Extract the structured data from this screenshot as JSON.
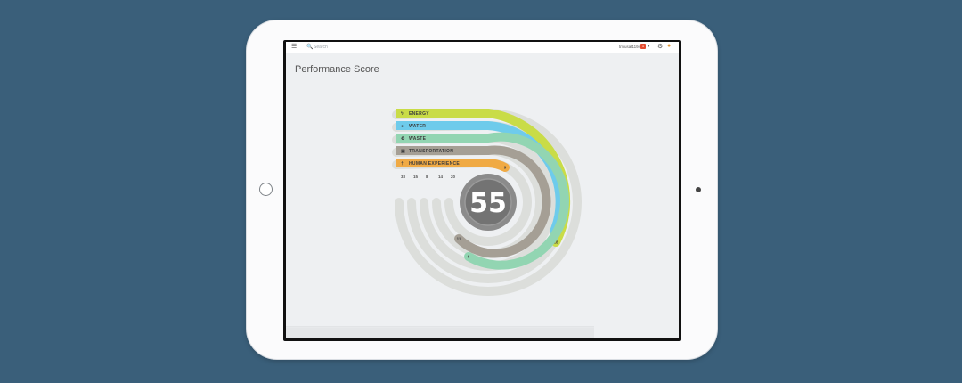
{
  "topbar": {
    "search_placeholder": "Search",
    "user_name": "tmlusat1194",
    "notification_count": "1"
  },
  "page_title": "Performance Score",
  "score": "55",
  "categories": [
    {
      "name": "ENERGY",
      "color": "#c9dc47",
      "icon": "lightning-icon",
      "value": "33",
      "arc_label": "18"
    },
    {
      "name": "WATER",
      "color": "#6ecbeb",
      "icon": "water-drop-icon",
      "value": "15",
      "arc_label": "8"
    },
    {
      "name": "WASTE",
      "color": "#92d5b2",
      "icon": "recycle-icon",
      "value": "8",
      "arc_label": "6"
    },
    {
      "name": "TRANSPORTATION",
      "color": "#a59f95",
      "icon": "car-icon",
      "value": "14",
      "arc_label": "11"
    },
    {
      "name": "HUMAN EXPERIENCE",
      "color": "#f0aa44",
      "icon": "person-icon",
      "value": "20",
      "arc_label": "9"
    }
  ],
  "colors": {
    "track": "#dcdedb",
    "center_outer": "#8b8b8b",
    "center_inner": "#737373",
    "score_text": "#ffffff"
  }
}
